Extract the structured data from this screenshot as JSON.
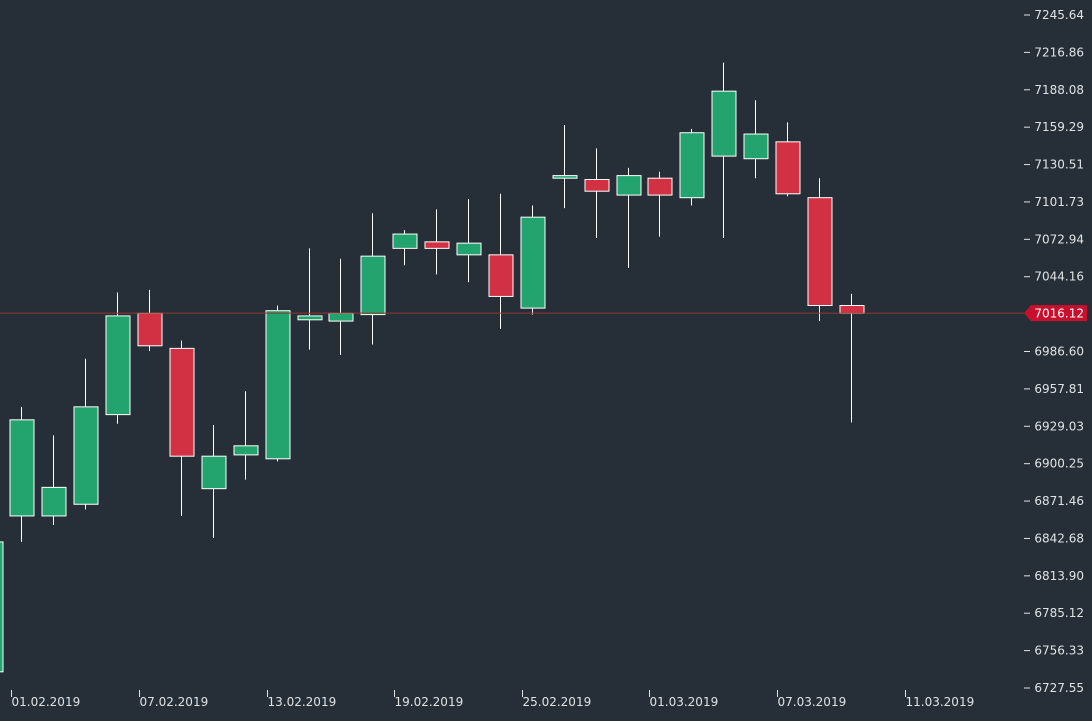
{
  "chart_data": {
    "type": "candlestick",
    "colors": {
      "background": "#262f37",
      "up": "#23a36e",
      "down": "#d23043",
      "wick": "#ffffff",
      "price_line": "#8e3a2c",
      "price_tag": "#c8102e",
      "text": "#dfe3e6"
    },
    "ylim": [
      6727.55,
      7245.64
    ],
    "y_ticks": [
      "7245.64",
      "7216.86",
      "7188.08",
      "7159.29",
      "7130.51",
      "7101.73",
      "7072.94",
      "7044.16",
      "7016.12",
      "6986.60",
      "6957.81",
      "6929.03",
      "6900.25",
      "6871.46",
      "6842.68",
      "6813.90",
      "6785.12",
      "6756.33",
      "6727.55"
    ],
    "x_ticks": [
      {
        "label": "01.02.2019",
        "index": 1
      },
      {
        "label": "07.02.2019",
        "index": 5
      },
      {
        "label": "13.02.2019",
        "index": 9
      },
      {
        "label": "19.02.2019",
        "index": 13
      },
      {
        "label": "25.02.2019",
        "index": 17
      },
      {
        "label": "01.03.2019",
        "index": 21
      },
      {
        "label": "07.03.2019",
        "index": 25
      },
      {
        "label": "11.03.2019",
        "index": 29
      }
    ],
    "current_price": 7016.12,
    "current_price_label": "7016.12",
    "candles": [
      {
        "open": 6740,
        "high": 6840,
        "low": 6728,
        "close": 6840
      },
      {
        "open": 6860,
        "high": 6944,
        "low": 6840,
        "close": 6934
      },
      {
        "open": 6860,
        "high": 6922,
        "low": 6853,
        "close": 6882
      },
      {
        "open": 6869,
        "high": 6981,
        "low": 6865,
        "close": 6944
      },
      {
        "open": 6938,
        "high": 7032,
        "low": 6931,
        "close": 7014
      },
      {
        "open": 7016,
        "high": 7034,
        "low": 6987,
        "close": 6991
      },
      {
        "open": 6989,
        "high": 6995,
        "low": 6860,
        "close": 6906
      },
      {
        "open": 6881,
        "high": 6930,
        "low": 6843,
        "close": 6906
      },
      {
        "open": 6907,
        "high": 6956,
        "low": 6888,
        "close": 6914
      },
      {
        "open": 6904,
        "high": 7022,
        "low": 6902,
        "close": 7018
      },
      {
        "open": 7011,
        "high": 7066,
        "low": 6988,
        "close": 7014
      },
      {
        "open": 7010,
        "high": 7058,
        "low": 6984,
        "close": 7016
      },
      {
        "open": 7015,
        "high": 7093,
        "low": 6992,
        "close": 7060
      },
      {
        "open": 7066,
        "high": 7080,
        "low": 7053,
        "close": 7077
      },
      {
        "open": 7071,
        "high": 7096,
        "low": 7046,
        "close": 7066
      },
      {
        "open": 7061,
        "high": 7104,
        "low": 7040,
        "close": 7070
      },
      {
        "open": 7061,
        "high": 7108,
        "low": 7004,
        "close": 7029
      },
      {
        "open": 7020,
        "high": 7099,
        "low": 7015,
        "close": 7090
      },
      {
        "open": 7120,
        "high": 7161,
        "low": 7097,
        "close": 7122
      },
      {
        "open": 7119,
        "high": 7143,
        "low": 7074,
        "close": 7110
      },
      {
        "open": 7107,
        "high": 7128,
        "low": 7051,
        "close": 7122
      },
      {
        "open": 7120,
        "high": 7125,
        "low": 7075,
        "close": 7107
      },
      {
        "open": 7105,
        "high": 7158,
        "low": 7099,
        "close": 7155
      },
      {
        "open": 7137,
        "high": 7209,
        "low": 7074,
        "close": 7187
      },
      {
        "open": 7135,
        "high": 7180,
        "low": 7120,
        "close": 7154
      },
      {
        "open": 7148,
        "high": 7163,
        "low": 7106,
        "close": 7108
      },
      {
        "open": 7105,
        "high": 7120,
        "low": 7010,
        "close": 7022
      },
      {
        "open": 7022,
        "high": 7031,
        "low": 6932,
        "close": 7016
      }
    ]
  }
}
